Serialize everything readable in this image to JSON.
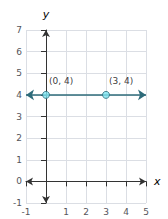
{
  "chart_data": {
    "type": "scatter",
    "xlabel": "x",
    "ylabel": "y",
    "xlim": [
      -1,
      5
    ],
    "ylim": [
      -1,
      7
    ],
    "xticks": [
      -1,
      1,
      2,
      3,
      4,
      5
    ],
    "yticks": [
      -1,
      0,
      1,
      2,
      3,
      4,
      5,
      6,
      7
    ],
    "grid": true,
    "data_labels": true,
    "series": [
      {
        "type": "scatter",
        "color": "#7fe5f0",
        "x": [
          0,
          3
        ],
        "values": [
          4,
          4
        ],
        "value_labels": [
          "(0, 4)",
          "(3, 4)"
        ]
      }
    ],
    "reference_line": {
      "y": 4,
      "color": "#2e6b7a"
    }
  }
}
